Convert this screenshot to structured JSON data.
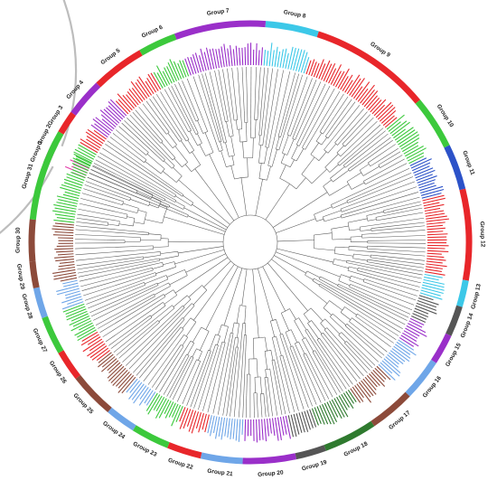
{
  "figure": {
    "colors": {
      "red": "#e8262a",
      "green": "#3cc93c",
      "purple": "#9a2fc9",
      "cyan": "#3cc8e8",
      "gray": "#909090",
      "brown": "#8c4a3a",
      "darkgreen": "#2f7a2f",
      "blue": "#2c52c8",
      "lightblue": "#6fa6e8",
      "magenta": "#e23aa8",
      "darkgray": "#555555"
    },
    "groups": [
      {
        "label": "Group 1",
        "color": "magenta"
      },
      {
        "label": "Group 2",
        "color": "green"
      },
      {
        "label": "Group 3",
        "color": "red"
      },
      {
        "label": "Group 4",
        "color": "purple"
      },
      {
        "label": "Group 5",
        "color": "red"
      },
      {
        "label": "Group 6",
        "color": "green"
      },
      {
        "label": "Group 7",
        "color": "purple"
      },
      {
        "label": "Group 8",
        "color": "cyan"
      },
      {
        "label": "Group 9",
        "color": "red"
      },
      {
        "label": "Group 10",
        "color": "green"
      },
      {
        "label": "Group 11",
        "color": "blue"
      },
      {
        "label": "Group 12",
        "color": "red"
      },
      {
        "label": "Group 13",
        "color": "cyan"
      },
      {
        "label": "Group 14",
        "color": "darkgray"
      },
      {
        "label": "Group 15",
        "color": "purple"
      },
      {
        "label": "Group 16",
        "color": "lightblue"
      },
      {
        "label": "Group 17",
        "color": "brown"
      },
      {
        "label": "Group 18",
        "color": "darkgreen"
      },
      {
        "label": "Group 19",
        "color": "darkgray"
      },
      {
        "label": "Group 20",
        "color": "purple"
      },
      {
        "label": "Group 21",
        "color": "lightblue"
      },
      {
        "label": "Group 22",
        "color": "red"
      },
      {
        "label": "Group 23",
        "color": "green"
      },
      {
        "label": "Group 24",
        "color": "lightblue"
      },
      {
        "label": "Group 25",
        "color": "brown"
      },
      {
        "label": "Group 26",
        "color": "red"
      },
      {
        "label": "Group 27",
        "color": "green"
      },
      {
        "label": "Group 28",
        "color": "lightblue"
      },
      {
        "label": "Group 29",
        "color": "brown"
      },
      {
        "label": "Group 30",
        "color": "brown"
      },
      {
        "label": "Group 31",
        "color": "green"
      }
    ]
  }
}
